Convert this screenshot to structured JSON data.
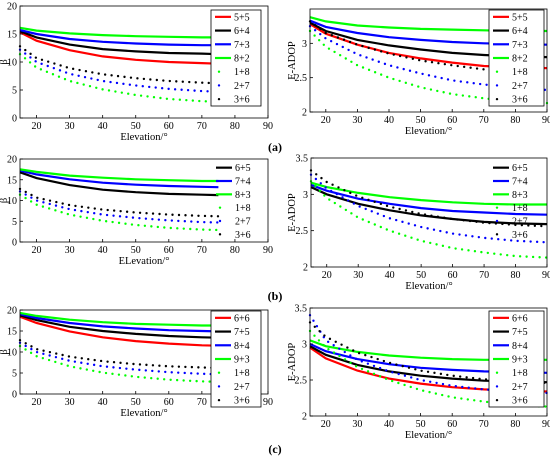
{
  "colors": {
    "red": "#ff0000",
    "black": "#000000",
    "blue": "#0000ff",
    "green": "#00ff00"
  },
  "panel_labels": [
    "(a)",
    "(b)",
    "(c)"
  ],
  "chart_data": [
    {
      "type": "line",
      "panel": "(a)",
      "xlabel": "Elevation/°",
      "ylabel": "β",
      "xlim": [
        15,
        90
      ],
      "ylim": [
        0,
        20
      ],
      "xticks": [
        20,
        30,
        40,
        50,
        60,
        70,
        80,
        90
      ],
      "yticks": [
        0,
        5,
        10,
        15,
        20
      ],
      "x": [
        15,
        20,
        30,
        40,
        50,
        60,
        70,
        75
      ],
      "legend_position": "right",
      "series": [
        {
          "name": "5+5",
          "color": "red",
          "style": "solid",
          "values": [
            15.3,
            13.8,
            12.1,
            11.0,
            10.4,
            10.0,
            9.8,
            9.7
          ]
        },
        {
          "name": "6+4",
          "color": "black",
          "style": "solid",
          "values": [
            15.5,
            14.4,
            13.1,
            12.3,
            11.9,
            11.6,
            11.5,
            11.4
          ]
        },
        {
          "name": "7+3",
          "color": "blue",
          "style": "solid",
          "values": [
            15.7,
            15.0,
            14.1,
            13.6,
            13.3,
            13.1,
            13.0,
            13.0
          ]
        },
        {
          "name": "8+2",
          "color": "green",
          "style": "solid",
          "values": [
            16.1,
            15.6,
            15.1,
            14.8,
            14.6,
            14.5,
            14.4,
            14.4
          ]
        },
        {
          "name": "1+8",
          "color": "green",
          "style": "dotted",
          "values": [
            11.4,
            9.0,
            6.6,
            5.1,
            4.1,
            3.4,
            3.0,
            2.9
          ]
        },
        {
          "name": "2+7",
          "color": "blue",
          "style": "dotted",
          "values": [
            12.2,
            10.0,
            7.9,
            6.6,
            5.8,
            5.2,
            4.8,
            4.7
          ]
        },
        {
          "name": "3+6",
          "color": "black",
          "style": "dotted",
          "values": [
            12.8,
            10.7,
            8.9,
            7.8,
            7.1,
            6.6,
            6.3,
            6.2
          ]
        }
      ]
    },
    {
      "type": "line",
      "panel": "(a)",
      "xlabel": "Elevation/°",
      "ylabel": "E-ADOP",
      "xlim": [
        15,
        90
      ],
      "ylim": [
        2,
        3.5
      ],
      "xticks": [
        20,
        30,
        40,
        50,
        60,
        70,
        80,
        90
      ],
      "yticks": [
        2,
        2.5,
        3
      ],
      "x": [
        15,
        20,
        30,
        40,
        50,
        60,
        70,
        80,
        90
      ],
      "legend_position": "right",
      "series": [
        {
          "name": "5+5",
          "color": "red",
          "style": "solid",
          "values": [
            3.28,
            3.14,
            2.98,
            2.86,
            2.78,
            2.72,
            2.67,
            2.65,
            2.64
          ]
        },
        {
          "name": "6+4",
          "color": "black",
          "style": "solid",
          "values": [
            3.3,
            3.18,
            3.05,
            2.97,
            2.91,
            2.86,
            2.83,
            2.81,
            2.8
          ]
        },
        {
          "name": "7+3",
          "color": "blue",
          "style": "solid",
          "values": [
            3.33,
            3.24,
            3.15,
            3.09,
            3.05,
            3.02,
            3.0,
            2.99,
            2.98
          ]
        },
        {
          "name": "8+2",
          "color": "green",
          "style": "solid",
          "values": [
            3.38,
            3.32,
            3.26,
            3.23,
            3.21,
            3.2,
            3.19,
            3.18,
            3.18
          ]
        },
        {
          "name": "1+8",
          "color": "green",
          "style": "dotted",
          "values": [
            3.18,
            2.95,
            2.68,
            2.5,
            2.36,
            2.26,
            2.2,
            2.15,
            2.13
          ]
        },
        {
          "name": "2+7",
          "color": "blue",
          "style": "dotted",
          "values": [
            3.25,
            3.07,
            2.84,
            2.68,
            2.56,
            2.46,
            2.4,
            2.35,
            2.32
          ]
        },
        {
          "name": "3+6",
          "color": "black",
          "style": "dotted",
          "values": [
            3.32,
            3.15,
            2.98,
            2.85,
            2.75,
            2.68,
            2.62,
            2.58,
            2.56
          ]
        }
      ]
    },
    {
      "type": "line",
      "panel": "(b)",
      "xlabel": "ELevation/°",
      "ylabel": "β",
      "xlim": [
        15,
        90
      ],
      "ylim": [
        0,
        20
      ],
      "xticks": [
        20,
        30,
        40,
        50,
        60,
        70,
        80,
        90
      ],
      "yticks": [
        0,
        5,
        10,
        15,
        20
      ],
      "x": [
        15,
        20,
        30,
        40,
        50,
        60,
        70,
        75
      ],
      "legend_position": "right",
      "series": [
        {
          "name": "6+5",
          "color": "black",
          "style": "solid",
          "values": [
            16.8,
            15.4,
            13.7,
            12.6,
            12.0,
            11.6,
            11.4,
            11.3
          ]
        },
        {
          "name": "7+4",
          "color": "blue",
          "style": "solid",
          "values": [
            17.2,
            16.3,
            15.1,
            14.3,
            13.8,
            13.5,
            13.3,
            13.2
          ]
        },
        {
          "name": "8+3",
          "color": "green",
          "style": "solid",
          "values": [
            17.5,
            16.9,
            16.0,
            15.5,
            15.1,
            14.9,
            14.7,
            14.7
          ]
        },
        {
          "name": "1+8",
          "color": "green",
          "style": "dotted",
          "values": [
            11.4,
            9.0,
            6.6,
            5.1,
            4.1,
            3.4,
            3.0,
            2.9
          ]
        },
        {
          "name": "2+7",
          "color": "blue",
          "style": "dotted",
          "values": [
            12.2,
            10.0,
            7.9,
            6.6,
            5.8,
            5.2,
            4.8,
            4.7
          ]
        },
        {
          "name": "3+6",
          "color": "black",
          "style": "dotted",
          "values": [
            12.8,
            10.7,
            8.9,
            7.8,
            7.1,
            6.6,
            6.3,
            6.2
          ]
        }
      ]
    },
    {
      "type": "line",
      "panel": "(b)",
      "xlabel": "Elevation/°",
      "ylabel": "E-ADOP",
      "xlim": [
        15,
        90
      ],
      "ylim": [
        2,
        3.5
      ],
      "xticks": [
        20,
        30,
        40,
        50,
        60,
        70,
        80,
        90
      ],
      "yticks": [
        2,
        2.5,
        3,
        3.5
      ],
      "x": [
        15,
        20,
        30,
        40,
        50,
        60,
        70,
        80,
        90
      ],
      "legend_position": "right",
      "series": [
        {
          "name": "6+5",
          "color": "black",
          "style": "solid",
          "values": [
            3.1,
            3.0,
            2.87,
            2.78,
            2.71,
            2.66,
            2.62,
            2.6,
            2.59
          ]
        },
        {
          "name": "7+4",
          "color": "blue",
          "style": "solid",
          "values": [
            3.13,
            3.05,
            2.94,
            2.87,
            2.81,
            2.77,
            2.75,
            2.73,
            2.72
          ]
        },
        {
          "name": "8+3",
          "color": "green",
          "style": "solid",
          "values": [
            3.16,
            3.1,
            3.02,
            2.96,
            2.92,
            2.89,
            2.87,
            2.86,
            2.86
          ]
        },
        {
          "name": "1+8",
          "color": "green",
          "style": "dotted",
          "values": [
            3.18,
            2.95,
            2.68,
            2.5,
            2.36,
            2.26,
            2.2,
            2.15,
            2.13
          ]
        },
        {
          "name": "2+7",
          "color": "blue",
          "style": "dotted",
          "values": [
            3.27,
            3.08,
            2.84,
            2.67,
            2.55,
            2.46,
            2.4,
            2.36,
            2.34
          ]
        },
        {
          "name": "3+6",
          "color": "black",
          "style": "dotted",
          "values": [
            3.33,
            3.17,
            2.97,
            2.83,
            2.73,
            2.66,
            2.61,
            2.58,
            2.56
          ]
        }
      ]
    },
    {
      "type": "line",
      "panel": "(c)",
      "xlabel": "Elevation/°",
      "ylabel": "β",
      "xlim": [
        15,
        90
      ],
      "ylim": [
        0,
        20
      ],
      "xticks": [
        20,
        30,
        40,
        50,
        60,
        70,
        80,
        90
      ],
      "yticks": [
        0,
        5,
        10,
        15,
        20
      ],
      "x": [
        15,
        20,
        30,
        40,
        50,
        60,
        70,
        75
      ],
      "legend_position": "right",
      "series": [
        {
          "name": "6+6",
          "color": "red",
          "style": "solid",
          "values": [
            18.4,
            16.9,
            14.9,
            13.5,
            12.6,
            12.0,
            11.6,
            11.5
          ]
        },
        {
          "name": "7+5",
          "color": "black",
          "style": "solid",
          "values": [
            18.7,
            17.6,
            16.0,
            15.0,
            14.3,
            13.8,
            13.5,
            13.4
          ]
        },
        {
          "name": "8+4",
          "color": "blue",
          "style": "solid",
          "values": [
            19.0,
            18.1,
            16.9,
            16.1,
            15.6,
            15.2,
            15.0,
            14.9
          ]
        },
        {
          "name": "9+3",
          "color": "green",
          "style": "solid",
          "values": [
            19.3,
            18.6,
            17.7,
            17.1,
            16.7,
            16.5,
            16.3,
            16.3
          ]
        },
        {
          "name": "1+8",
          "color": "green",
          "style": "dotted",
          "values": [
            11.4,
            9.0,
            6.6,
            5.1,
            4.1,
            3.4,
            3.0,
            2.9
          ]
        },
        {
          "name": "2+7",
          "color": "blue",
          "style": "dotted",
          "values": [
            12.2,
            10.0,
            7.9,
            6.6,
            5.8,
            5.2,
            4.8,
            4.7
          ]
        },
        {
          "name": "3+6",
          "color": "black",
          "style": "dotted",
          "values": [
            12.8,
            10.7,
            8.9,
            7.8,
            7.1,
            6.6,
            6.3,
            6.2
          ]
        }
      ]
    },
    {
      "type": "line",
      "panel": "(c)",
      "xlabel": "Elevation/°",
      "ylabel": "E-ADOP",
      "xlim": [
        15,
        90
      ],
      "ylim": [
        2,
        3.5
      ],
      "xticks": [
        20,
        30,
        40,
        50,
        60,
        70,
        80,
        90
      ],
      "yticks": [
        2,
        2.5,
        3,
        3.5
      ],
      "x": [
        15,
        20,
        30,
        40,
        50,
        60,
        70,
        80,
        90
      ],
      "legend_position": "right",
      "series": [
        {
          "name": "6+6",
          "color": "red",
          "style": "solid",
          "values": [
            2.95,
            2.8,
            2.63,
            2.52,
            2.45,
            2.4,
            2.37,
            2.35,
            2.34
          ]
        },
        {
          "name": "7+5",
          "color": "black",
          "style": "solid",
          "values": [
            2.97,
            2.85,
            2.71,
            2.62,
            2.56,
            2.52,
            2.49,
            2.48,
            2.47
          ]
        },
        {
          "name": "8+4",
          "color": "blue",
          "style": "solid",
          "values": [
            3.0,
            2.9,
            2.79,
            2.72,
            2.67,
            2.64,
            2.62,
            2.61,
            2.6
          ]
        },
        {
          "name": "9+3",
          "color": "green",
          "style": "solid",
          "values": [
            3.05,
            2.97,
            2.89,
            2.84,
            2.81,
            2.79,
            2.78,
            2.78,
            2.78
          ]
        },
        {
          "name": "1+8",
          "color": "green",
          "style": "dotted",
          "values": [
            3.18,
            2.95,
            2.68,
            2.5,
            2.36,
            2.26,
            2.2,
            2.15,
            2.13
          ]
        },
        {
          "name": "2+7",
          "color": "blue",
          "style": "dotted",
          "values": [
            3.4,
            3.05,
            2.78,
            2.62,
            2.5,
            2.42,
            2.37,
            2.34,
            2.32
          ]
        },
        {
          "name": "3+6",
          "color": "black",
          "style": "dotted",
          "values": [
            3.3,
            3.1,
            2.88,
            2.74,
            2.63,
            2.56,
            2.51,
            2.48,
            2.46
          ]
        }
      ]
    }
  ]
}
